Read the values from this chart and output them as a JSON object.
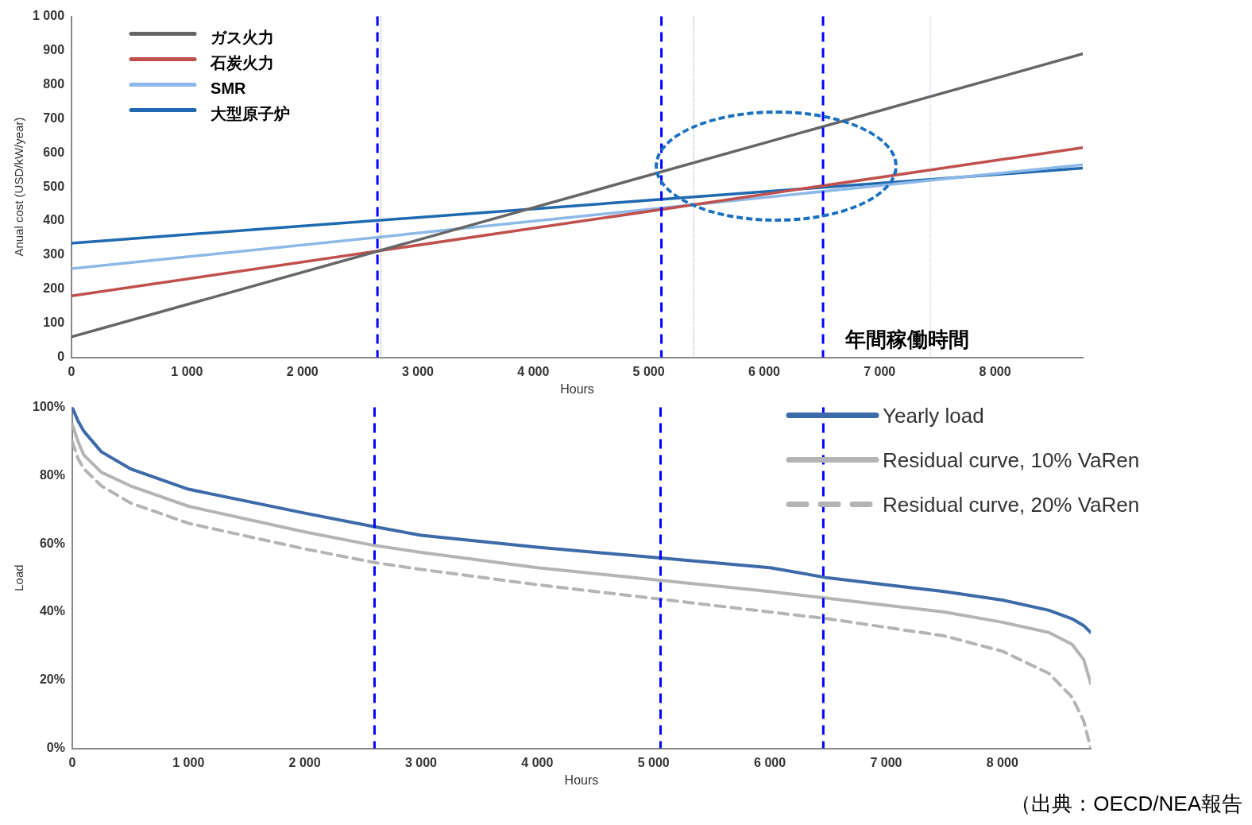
{
  "chart_data": [
    {
      "type": "line",
      "ylabel": "Anual cost (USD/kW/year)",
      "xlabel": "Hours",
      "x": [
        0,
        8760
      ],
      "series": [
        {
          "name": "ガス火力",
          "color": "#666666",
          "values": [
            60,
            890
          ]
        },
        {
          "name": "石炭火力",
          "color": "#c0504d",
          "values": [
            180,
            615
          ]
        },
        {
          "name": "SMR",
          "color": "#8db9e8",
          "values": [
            260,
            565
          ]
        },
        {
          "name": "大型原子炉",
          "color": "#1f69b0",
          "values": [
            335,
            555
          ]
        }
      ],
      "xlim": [
        0,
        8760
      ],
      "xticks": [
        0,
        {
          "value": 1000,
          "label": "1 000"
        },
        {
          "value": 2000,
          "label": "2 000"
        },
        {
          "value": 3000,
          "label": "3 000"
        },
        {
          "value": 4000,
          "label": "4 000"
        },
        {
          "value": 5000,
          "label": "5 000"
        },
        {
          "value": 6000,
          "label": "6 000"
        },
        {
          "value": 7000,
          "label": "7 000"
        },
        {
          "value": 8000,
          "label": "8 000"
        }
      ],
      "ylim": [
        0,
        1000
      ],
      "yticks": [
        0,
        100,
        200,
        300,
        400,
        500,
        600,
        700,
        800,
        900,
        {
          "value": 1000,
          "label": "1 000"
        }
      ],
      "ref_lines": [
        {
          "axis": "x",
          "value": 2680,
          "color": "#888888",
          "line_style": "dotted"
        },
        {
          "axis": "x",
          "value": 5390,
          "color": "#888888",
          "line_style": "dotted"
        },
        {
          "axis": "x",
          "value": 7440,
          "color": "#9aaad0",
          "line_style": "dotted"
        },
        {
          "axis": "x",
          "value": 2650,
          "color": "#0000ff",
          "line_style": "dashed"
        },
        {
          "axis": "x",
          "value": 5110,
          "color": "#0000ff",
          "line_style": "dashed"
        },
        {
          "axis": "x",
          "value": 6510,
          "color": "#0000ff",
          "line_style": "dashed"
        }
      ],
      "annotations": [
        "年間稼働時間"
      ],
      "legend": "top left",
      "grid": false
    },
    {
      "type": "line",
      "ylabel": "Load",
      "xlabel": "Hours",
      "x": [
        0,
        50,
        100,
        250,
        500,
        1000,
        2000,
        2600,
        3000,
        4000,
        5000,
        6000,
        6500,
        7000,
        7500,
        8000,
        8400,
        8600,
        8700,
        8760
      ],
      "series": [
        {
          "name": "Yearly load",
          "color": "#3d6aa8",
          "line_style": "solid",
          "values": [
            100,
            96,
            93,
            87,
            82,
            76,
            69,
            65,
            62.5,
            59,
            56,
            53,
            50,
            48,
            46,
            43.5,
            40.5,
            38,
            36,
            34
          ]
        },
        {
          "name": "Residual curve, 10% VaRen",
          "color": "#b4b4b4",
          "line_style": "solid",
          "values": [
            95,
            90,
            86,
            81,
            77,
            71,
            63.5,
            59.5,
            57.5,
            53,
            49.5,
            46,
            44,
            42,
            40,
            37,
            34,
            30.5,
            26,
            19
          ]
        },
        {
          "name": "Residual curve, 20% VaRen",
          "color": "#b4b4b4",
          "line_style": "dashed",
          "values": [
            90,
            85,
            82,
            77,
            72,
            66,
            58.5,
            54.5,
            52.5,
            48,
            44,
            40,
            38,
            35.5,
            33,
            28.5,
            22,
            15,
            8,
            0
          ]
        }
      ],
      "xlim": [
        0,
        8760
      ],
      "xticks": [
        0,
        {
          "value": 1000,
          "label": "1 000"
        },
        {
          "value": 2000,
          "label": "2 000"
        },
        {
          "value": 3000,
          "label": "3 000"
        },
        {
          "value": 4000,
          "label": "4 000"
        },
        {
          "value": 5000,
          "label": "5 000"
        },
        {
          "value": 6000,
          "label": "6 000"
        },
        {
          "value": 7000,
          "label": "7 000"
        },
        {
          "value": 8000,
          "label": "8 000"
        }
      ],
      "ylim": [
        0,
        100
      ],
      "yticks": [
        {
          "value": 0,
          "label": "0%"
        },
        {
          "value": 20,
          "label": "20%"
        },
        {
          "value": 40,
          "label": "40%"
        },
        {
          "value": 60,
          "label": "60%"
        },
        {
          "value": 80,
          "label": "80%"
        },
        {
          "value": 100,
          "label": "100%"
        }
      ],
      "ref_lines": [
        {
          "axis": "x",
          "value": 2600,
          "color": "#0000ff",
          "line_style": "dashed"
        },
        {
          "axis": "x",
          "value": 5060,
          "color": "#0000ff",
          "line_style": "dashed"
        },
        {
          "axis": "x",
          "value": 6460,
          "color": "#0000ff",
          "line_style": "dashed"
        }
      ],
      "annotations": [
        "（出典：OECD/NEA報告"
      ],
      "legend": "top right",
      "grid": false
    }
  ]
}
